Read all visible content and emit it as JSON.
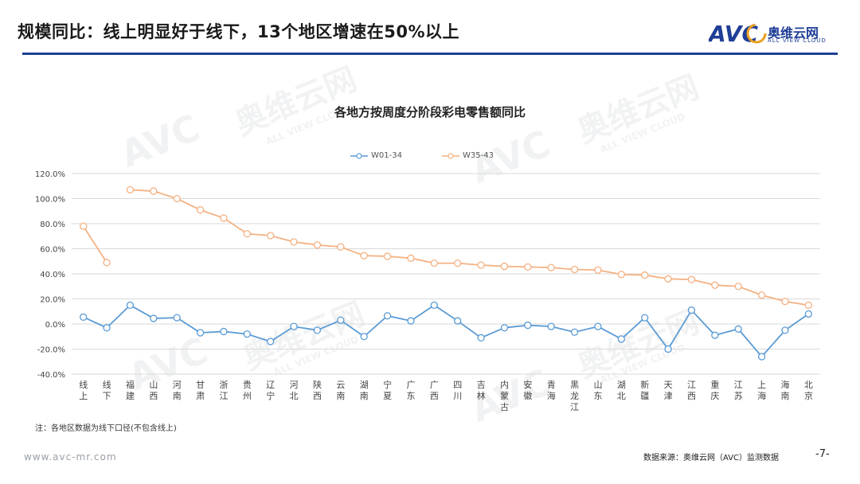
{
  "header": {
    "title": "规模同比：线上明显好于线下，13个地区增速在50%以上",
    "logo_mark": "AVC",
    "logo_text": "奥维云网",
    "logo_sub": "ALL VIEW CLOUD"
  },
  "watermark": {
    "mark": "AVC",
    "text": "奥维云网",
    "sub": "ALL VIEW CLOUD"
  },
  "colors": {
    "accent": "#1c3f93",
    "series1": "#5b9bd5",
    "series2": "#f4b183",
    "grid": "#d9d9d9"
  },
  "chart_data": {
    "type": "line",
    "title": "各地方按周度分阶段彩电零售额同比",
    "categories": [
      "线上",
      "线下",
      "福建",
      "山西",
      "河南",
      "甘肃",
      "浙江",
      "贵州",
      "辽宁",
      "河北",
      "陕西",
      "云南",
      "湖南",
      "宁夏",
      "广东",
      "广西",
      "四川",
      "吉林",
      "内蒙古",
      "安徽",
      "青海",
      "黑龙江",
      "山东",
      "湖北",
      "新疆",
      "天津",
      "江西",
      "重庆",
      "江苏",
      "上海",
      "海南",
      "北京"
    ],
    "series": [
      {
        "name": "W01-34",
        "values": [
          5.5,
          -3,
          15,
          4.5,
          5,
          -7,
          -6,
          -8,
          -14,
          -2,
          -5,
          3,
          -10,
          6.5,
          2.5,
          15,
          2.5,
          -11,
          -3,
          -1,
          -2,
          -6.5,
          -2,
          -12,
          5,
          -20,
          11,
          -9,
          -4,
          -26,
          -5,
          8
        ]
      },
      {
        "name": "W35-43",
        "values": [
          78,
          49,
          107,
          106,
          100,
          91,
          84.5,
          72,
          70.5,
          65.5,
          63,
          61.5,
          54.5,
          54,
          52.5,
          48.5,
          48.5,
          47,
          46,
          45.5,
          45,
          43.5,
          43,
          39.5,
          39,
          36,
          35.5,
          31,
          30,
          23,
          18,
          15
        ],
        "start_gap_after": 1
      }
    ],
    "ylim": [
      -40,
      120
    ],
    "yticks": [
      "120.0%",
      "100.0%",
      "80.0%",
      "60.0%",
      "40.0%",
      "20.0%",
      "0.0%",
      "-20.0%",
      "-40.0%"
    ],
    "ytick_values": [
      120,
      100,
      80,
      60,
      40,
      20,
      0,
      -20,
      -40
    ],
    "legend_position": "top",
    "grid": true
  },
  "note": "注：各地区数据为线下口径(不包含线上)",
  "footer": {
    "url": "www.avc-mr.com",
    "source": "数据来源：奥维云网（AVC）监测数据",
    "page": "-7-"
  }
}
